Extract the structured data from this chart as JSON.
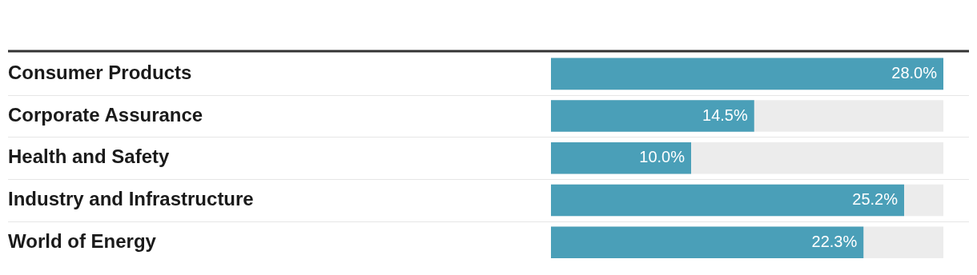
{
  "chart_data": {
    "type": "bar",
    "orientation": "horizontal",
    "categories": [
      "Consumer Products",
      "Corporate Assurance",
      "Health and Safety",
      "Industry and Infrastructure",
      "World of Energy"
    ],
    "values": [
      28.0,
      14.5,
      10.0,
      25.2,
      22.3
    ],
    "value_labels": [
      "28.0%",
      "14.5%",
      "10.0%",
      "25.2%",
      "22.3%"
    ],
    "color": "#4a9fb8",
    "xlim": [
      0,
      28.0
    ],
    "tick_labels": "y",
    "legend": false
  }
}
